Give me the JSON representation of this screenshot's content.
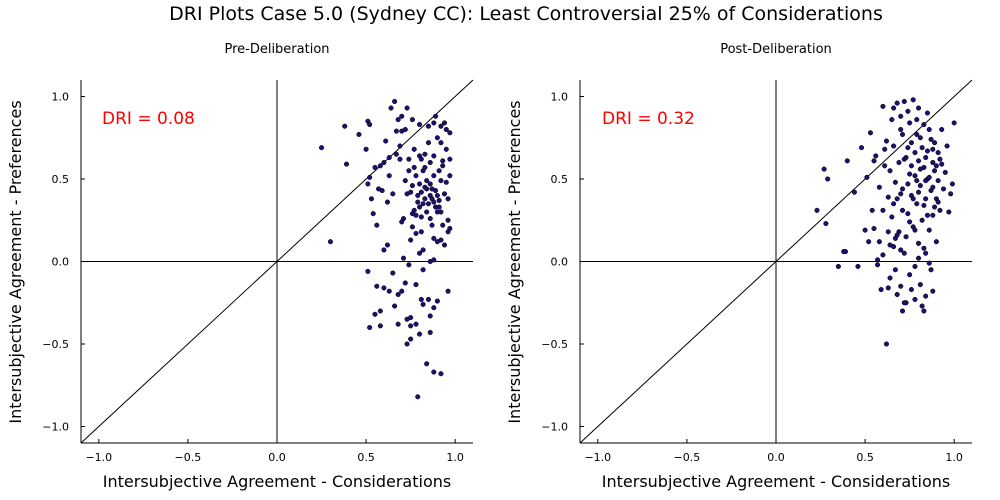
{
  "title": "DRI Plots Case 5.0 (Sydney CC): Least Controversial 25% of Considerations",
  "colors": {
    "point_fill": "#1c1070",
    "point_stroke": "#000000",
    "annotation": "#ff0000",
    "axis": "#000000",
    "background": "#ffffff"
  },
  "chart_data": [
    {
      "type": "scatter",
      "title": "Pre-Deliberation",
      "xlabel": "Intersubjective Agreement - Considerations",
      "ylabel": "Intersubjective Agreement - Preferences",
      "xlim": [
        -1.1,
        1.1
      ],
      "ylim": [
        -1.1,
        1.1
      ],
      "xticks": [
        -1.0,
        -0.5,
        0.0,
        0.5,
        1.0
      ],
      "yticks": [
        -1.0,
        -0.5,
        0.0,
        0.5,
        1.0
      ],
      "xtick_labels": [
        "−1.0",
        "−0.5",
        "0.0",
        "0.5",
        "1.0"
      ],
      "ytick_labels": [
        "−1.0",
        "−0.5",
        "0.0",
        "0.5",
        "1.0"
      ],
      "grid": false,
      "reference_line": "y = x",
      "annotation": "DRI = 0.08",
      "points": [
        [
          0.25,
          0.69
        ],
        [
          0.3,
          0.12
        ],
        [
          0.38,
          0.82
        ],
        [
          0.39,
          0.59
        ],
        [
          0.46,
          0.77
        ],
        [
          0.5,
          0.68
        ],
        [
          0.51,
          0.85
        ],
        [
          0.52,
          0.83
        ],
        [
          0.52,
          0.51
        ],
        [
          0.51,
          0.47
        ],
        [
          0.53,
          0.38
        ],
        [
          0.54,
          0.29
        ],
        [
          0.56,
          0.22
        ],
        [
          0.55,
          0.57
        ],
        [
          0.57,
          0.44
        ],
        [
          0.59,
          0.43
        ],
        [
          0.6,
          0.6
        ],
        [
          0.61,
          0.73
        ],
        [
          0.62,
          0.36
        ],
        [
          0.63,
          0.52
        ],
        [
          0.65,
          0.41
        ],
        [
          0.66,
          0.97
        ],
        [
          0.67,
          0.79
        ],
        [
          0.68,
          0.86
        ],
        [
          0.69,
          0.62
        ],
        [
          0.7,
          0.79
        ],
        [
          0.7,
          0.24
        ],
        [
          0.71,
          0.26
        ],
        [
          0.72,
          0.8
        ],
        [
          0.73,
          0.93
        ],
        [
          0.74,
          0.62
        ],
        [
          0.75,
          0.42
        ],
        [
          0.75,
          0.13
        ],
        [
          0.76,
          0.29
        ],
        [
          0.76,
          0.46
        ],
        [
          0.77,
          0.57
        ],
        [
          0.77,
          0.68
        ],
        [
          0.78,
          0.52
        ],
        [
          0.78,
          0.17
        ],
        [
          0.79,
          0.36
        ],
        [
          0.8,
          0.83
        ],
        [
          0.8,
          0.64
        ],
        [
          0.81,
          0.27
        ],
        [
          0.81,
          0.18
        ],
        [
          0.82,
          0.55
        ],
        [
          0.82,
          0.07
        ],
        [
          0.83,
          0.45
        ],
        [
          0.83,
          0.65
        ],
        [
          0.84,
          0.3
        ],
        [
          0.84,
          0.49
        ],
        [
          0.85,
          0.82
        ],
        [
          0.85,
          0.72
        ],
        [
          0.86,
          0.6
        ],
        [
          0.86,
          0.4
        ],
        [
          0.87,
          0.38
        ],
        [
          0.87,
          0.22
        ],
        [
          0.88,
          0.52
        ],
        [
          0.88,
          0.64
        ],
        [
          0.89,
          0.43
        ],
        [
          0.89,
          0.88
        ],
        [
          0.9,
          0.75
        ],
        [
          0.9,
          0.3
        ],
        [
          0.91,
          0.55
        ],
        [
          0.91,
          0.33
        ],
        [
          0.92,
          0.49
        ],
        [
          0.92,
          0.72
        ],
        [
          0.93,
          0.61
        ],
        [
          0.93,
          0.22
        ],
        [
          0.94,
          0.41
        ],
        [
          0.94,
          0.84
        ],
        [
          0.95,
          0.48
        ],
        [
          0.95,
          0.68
        ],
        [
          0.96,
          0.25
        ],
        [
          0.96,
          0.18
        ],
        [
          0.97,
          0.62
        ],
        [
          0.97,
          0.78
        ],
        [
          0.72,
          0.49
        ],
        [
          0.74,
          0.55
        ],
        [
          0.79,
          0.4
        ],
        [
          0.8,
          0.47
        ],
        [
          0.81,
          0.42
        ],
        [
          0.83,
          0.38
        ],
        [
          0.84,
          0.44
        ],
        [
          0.85,
          0.35
        ],
        [
          0.86,
          0.47
        ],
        [
          0.87,
          0.44
        ],
        [
          0.88,
          0.36
        ],
        [
          0.89,
          0.33
        ],
        [
          0.9,
          0.4
        ],
        [
          0.91,
          0.37
        ],
        [
          0.92,
          0.3
        ],
        [
          0.8,
          0.33
        ],
        [
          0.78,
          0.28
        ],
        [
          0.77,
          0.31
        ],
        [
          0.76,
          0.21
        ],
        [
          0.86,
          0.26
        ],
        [
          0.88,
          0.14
        ],
        [
          0.9,
          0.12
        ],
        [
          0.92,
          0.13
        ],
        [
          0.94,
          0.1
        ],
        [
          0.6,
          0.07
        ],
        [
          0.62,
          0.1
        ],
        [
          0.71,
          0.02
        ],
        [
          0.74,
          -0.02
        ],
        [
          0.8,
          0.05
        ],
        [
          0.82,
          -0.05
        ],
        [
          0.86,
          0.0
        ],
        [
          0.88,
          0.01
        ],
        [
          0.65,
          -0.07
        ],
        [
          0.72,
          -0.13
        ],
        [
          0.51,
          -0.06
        ],
        [
          0.56,
          -0.15
        ],
        [
          0.6,
          -0.16
        ],
        [
          0.63,
          -0.18
        ],
        [
          0.68,
          -0.2
        ],
        [
          0.7,
          -0.18
        ],
        [
          0.78,
          -0.14
        ],
        [
          0.81,
          -0.23
        ],
        [
          0.85,
          -0.23
        ],
        [
          0.9,
          -0.24
        ],
        [
          0.58,
          -0.3
        ],
        [
          0.55,
          -0.32
        ],
        [
          0.66,
          -0.27
        ],
        [
          0.73,
          -0.35
        ],
        [
          0.75,
          -0.34
        ],
        [
          0.78,
          -0.38
        ],
        [
          0.82,
          -0.26
        ],
        [
          0.86,
          -0.33
        ],
        [
          0.88,
          -0.28
        ],
        [
          0.96,
          -0.18
        ],
        [
          0.52,
          -0.4
        ],
        [
          0.58,
          -0.39
        ],
        [
          0.68,
          -0.38
        ],
        [
          0.75,
          -0.39
        ],
        [
          0.86,
          -0.43
        ],
        [
          0.73,
          -0.5
        ],
        [
          0.75,
          -0.47
        ],
        [
          0.8,
          -0.44
        ],
        [
          0.84,
          -0.62
        ],
        [
          0.88,
          -0.67
        ],
        [
          0.92,
          -0.68
        ],
        [
          0.79,
          -0.82
        ],
        [
          0.64,
          0.93
        ],
        [
          0.7,
          0.88
        ],
        [
          0.76,
          0.86
        ],
        [
          0.88,
          0.84
        ],
        [
          0.92,
          0.82
        ],
        [
          0.95,
          0.8
        ],
        [
          0.67,
          0.65
        ],
        [
          0.69,
          0.7
        ],
        [
          0.81,
          0.62
        ],
        [
          0.83,
          0.57
        ],
        [
          0.93,
          0.58
        ],
        [
          0.97,
          0.52
        ],
        [
          0.58,
          0.58
        ],
        [
          0.63,
          0.63
        ],
        [
          0.73,
          0.41
        ],
        [
          0.82,
          0.35
        ],
        [
          0.96,
          0.38
        ],
        [
          0.97,
          0.2
        ]
      ]
    },
    {
      "type": "scatter",
      "title": "Post-Deliberation",
      "xlabel": "Intersubjective Agreement - Considerations",
      "ylabel": "Intersubjective Agreement - Preferences",
      "xlim": [
        -1.1,
        1.1
      ],
      "ylim": [
        -1.1,
        1.1
      ],
      "xticks": [
        -1.0,
        -0.5,
        0.0,
        0.5,
        1.0
      ],
      "yticks": [
        -1.0,
        -0.5,
        0.0,
        0.5,
        1.0
      ],
      "xtick_labels": [
        "−1.0",
        "−0.5",
        "0.0",
        "0.5",
        "1.0"
      ],
      "ytick_labels": [
        "−1.0",
        "−0.5",
        "0.0",
        "0.5",
        "1.0"
      ],
      "grid": false,
      "reference_line": "y = x",
      "annotation": "DRI = 0.32",
      "points": [
        [
          0.23,
          0.31
        ],
        [
          0.27,
          0.56
        ],
        [
          0.28,
          0.23
        ],
        [
          0.29,
          0.5
        ],
        [
          0.35,
          -0.03
        ],
        [
          0.38,
          0.06
        ],
        [
          0.39,
          0.06
        ],
        [
          0.4,
          0.61
        ],
        [
          0.44,
          0.42
        ],
        [
          0.46,
          -0.03
        ],
        [
          0.48,
          0.69
        ],
        [
          0.5,
          0.19
        ],
        [
          0.51,
          0.51
        ],
        [
          0.52,
          0.12
        ],
        [
          0.53,
          0.78
        ],
        [
          0.54,
          0.31
        ],
        [
          0.55,
          0.61
        ],
        [
          0.56,
          0.64
        ],
        [
          0.57,
          -0.02
        ],
        [
          0.57,
          0.01
        ],
        [
          0.58,
          0.45
        ],
        [
          0.59,
          -0.17
        ],
        [
          0.6,
          0.31
        ],
        [
          0.6,
          0.94
        ],
        [
          0.61,
          0.68
        ],
        [
          0.62,
          -0.5
        ],
        [
          0.63,
          0.39
        ],
        [
          0.63,
          0.18
        ],
        [
          0.64,
          0.55
        ],
        [
          0.64,
          -0.1
        ],
        [
          0.65,
          0.86
        ],
        [
          0.65,
          0.27
        ],
        [
          0.66,
          0.7
        ],
        [
          0.66,
          0.09
        ],
        [
          0.67,
          0.48
        ],
        [
          0.67,
          -0.05
        ],
        [
          0.68,
          0.96
        ],
        [
          0.68,
          0.38
        ],
        [
          0.69,
          0.6
        ],
        [
          0.69,
          0.18
        ],
        [
          0.7,
          0.8
        ],
        [
          0.7,
          -0.15
        ],
        [
          0.71,
          0.44
        ],
        [
          0.71,
          0.31
        ],
        [
          0.72,
          0.97
        ],
        [
          0.72,
          0.05
        ],
        [
          0.73,
          0.63
        ],
        [
          0.73,
          -0.25
        ],
        [
          0.74,
          0.91
        ],
        [
          0.74,
          0.29
        ],
        [
          0.75,
          0.53
        ],
        [
          0.75,
          -0.08
        ],
        [
          0.76,
          0.4
        ],
        [
          0.76,
          0.72
        ],
        [
          0.77,
          0.21
        ],
        [
          0.77,
          0.98
        ],
        [
          0.78,
          0.52
        ],
        [
          0.78,
          -0.03
        ],
        [
          0.79,
          0.35
        ],
        [
          0.79,
          0.86
        ],
        [
          0.8,
          0.61
        ],
        [
          0.8,
          0.11
        ],
        [
          0.81,
          0.46
        ],
        [
          0.81,
          0.75
        ],
        [
          0.82,
          0.25
        ],
        [
          0.82,
          -0.27
        ],
        [
          0.83,
          0.57
        ],
        [
          0.83,
          0.83
        ],
        [
          0.84,
          0.38
        ],
        [
          0.84,
          0.05
        ],
        [
          0.85,
          0.67
        ],
        [
          0.85,
          0.5
        ],
        [
          0.86,
          0.19
        ],
        [
          0.86,
          0.8
        ],
        [
          0.87,
          0.43
        ],
        [
          0.87,
          -0.05
        ],
        [
          0.88,
          0.6
        ],
        [
          0.88,
          0.28
        ],
        [
          0.89,
          0.72
        ],
        [
          0.89,
          0.55
        ],
        [
          0.9,
          0.38
        ],
        [
          0.9,
          0.12
        ],
        [
          0.91,
          0.66
        ],
        [
          0.91,
          0.49
        ],
        [
          0.92,
          0.31
        ],
        [
          0.93,
          0.59
        ],
        [
          0.93,
          0.8
        ],
        [
          0.94,
          0.44
        ],
        [
          0.95,
          0.54
        ],
        [
          0.96,
          0.7
        ],
        [
          0.97,
          0.3
        ],
        [
          0.98,
          0.41
        ],
        [
          0.99,
          0.47
        ],
        [
          1.0,
          0.84
        ],
        [
          0.55,
          0.2
        ],
        [
          0.58,
          0.12
        ],
        [
          0.61,
          0.58
        ],
        [
          0.62,
          0.73
        ],
        [
          0.66,
          0.35
        ],
        [
          0.68,
          0.16
        ],
        [
          0.7,
          0.41
        ],
        [
          0.72,
          0.62
        ],
        [
          0.74,
          0.47
        ],
        [
          0.76,
          0.58
        ],
        [
          0.77,
          0.38
        ],
        [
          0.78,
          0.66
        ],
        [
          0.79,
          0.49
        ],
        [
          0.8,
          0.42
        ],
        [
          0.81,
          0.56
        ],
        [
          0.82,
          0.69
        ],
        [
          0.83,
          0.34
        ],
        [
          0.84,
          0.63
        ],
        [
          0.85,
          0.28
        ],
        [
          0.86,
          0.51
        ],
        [
          0.87,
          0.74
        ],
        [
          0.88,
          0.45
        ],
        [
          0.89,
          0.33
        ],
        [
          0.9,
          0.58
        ],
        [
          0.91,
          0.36
        ],
        [
          0.92,
          0.62
        ],
        [
          0.6,
          0.04
        ],
        [
          0.64,
          0.1
        ],
        [
          0.67,
          0.14
        ],
        [
          0.7,
          0.07
        ],
        [
          0.73,
          0.15
        ],
        [
          0.75,
          0.24
        ],
        [
          0.78,
          0.19
        ],
        [
          0.8,
          0.02
        ],
        [
          0.83,
          0.08
        ],
        [
          0.86,
          -0.01
        ],
        [
          0.63,
          -0.16
        ],
        [
          0.68,
          -0.2
        ],
        [
          0.72,
          -0.25
        ],
        [
          0.76,
          -0.17
        ],
        [
          0.81,
          -0.14
        ],
        [
          0.84,
          -0.21
        ],
        [
          0.88,
          -0.18
        ],
        [
          0.71,
          -0.3
        ],
        [
          0.78,
          -0.23
        ],
        [
          0.83,
          -0.3
        ],
        [
          0.66,
          0.93
        ],
        [
          0.7,
          0.88
        ],
        [
          0.75,
          0.84
        ],
        [
          0.8,
          0.93
        ],
        [
          0.85,
          0.9
        ],
        [
          0.71,
          0.77
        ],
        [
          0.79,
          0.77
        ],
        [
          0.88,
          0.68
        ],
        [
          0.74,
          0.69
        ],
        [
          0.84,
          0.49
        ]
      ]
    }
  ]
}
